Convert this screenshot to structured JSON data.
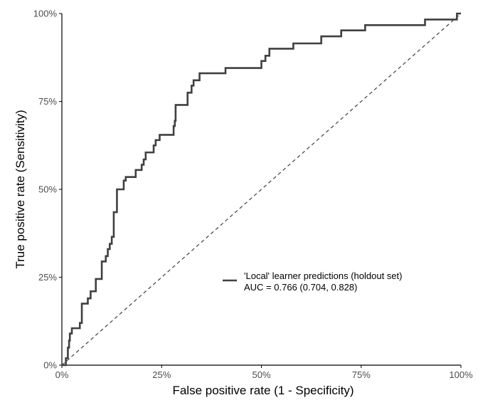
{
  "chart_data": {
    "type": "line",
    "title": "",
    "xlabel": "False positive rate (1 - Specificity)",
    "ylabel": "True positive rate (Sensitivity)",
    "xlim": [
      0,
      1
    ],
    "ylim": [
      0,
      1
    ],
    "x_ticks": [
      0,
      0.25,
      0.5,
      0.75,
      1
    ],
    "x_tick_labels": [
      "0%",
      "25%",
      "50%",
      "75%",
      "100%"
    ],
    "y_ticks": [
      0,
      0.25,
      0.5,
      0.75,
      1
    ],
    "y_tick_labels": [
      "0%",
      "25%",
      "50%",
      "75%",
      "100%"
    ],
    "grid": false,
    "legend_position": "bottom-right",
    "colors": {
      "curve": "#404040",
      "diagonal": "#404040",
      "axis": "#000000"
    },
    "reference_line": {
      "style": "dashed",
      "points": [
        [
          0,
          0
        ],
        [
          1,
          1
        ]
      ]
    },
    "series": [
      {
        "name": "'Local' learner predictions (holdout set)",
        "annotation": "AUC = 0.766 (0.704, 0.828)",
        "step": "vh",
        "points": [
          [
            0,
            0
          ],
          [
            0.01,
            0.02
          ],
          [
            0.015,
            0.05
          ],
          [
            0.018,
            0.07
          ],
          [
            0.02,
            0.09
          ],
          [
            0.025,
            0.105
          ],
          [
            0.045,
            0.12
          ],
          [
            0.05,
            0.175
          ],
          [
            0.065,
            0.19
          ],
          [
            0.072,
            0.21
          ],
          [
            0.085,
            0.245
          ],
          [
            0.1,
            0.295
          ],
          [
            0.11,
            0.31
          ],
          [
            0.115,
            0.33
          ],
          [
            0.12,
            0.345
          ],
          [
            0.125,
            0.365
          ],
          [
            0.13,
            0.435
          ],
          [
            0.138,
            0.5
          ],
          [
            0.155,
            0.525
          ],
          [
            0.16,
            0.535
          ],
          [
            0.185,
            0.555
          ],
          [
            0.2,
            0.57
          ],
          [
            0.205,
            0.585
          ],
          [
            0.21,
            0.605
          ],
          [
            0.23,
            0.625
          ],
          [
            0.235,
            0.64
          ],
          [
            0.245,
            0.655
          ],
          [
            0.28,
            0.68
          ],
          [
            0.283,
            0.695
          ],
          [
            0.285,
            0.74
          ],
          [
            0.315,
            0.775
          ],
          [
            0.325,
            0.795
          ],
          [
            0.33,
            0.81
          ],
          [
            0.345,
            0.83
          ],
          [
            0.41,
            0.845
          ],
          [
            0.5,
            0.865
          ],
          [
            0.51,
            0.88
          ],
          [
            0.52,
            0.9
          ],
          [
            0.58,
            0.915
          ],
          [
            0.65,
            0.935
          ],
          [
            0.7,
            0.952
          ],
          [
            0.76,
            0.967
          ],
          [
            0.91,
            0.983
          ],
          [
            0.99,
            1.0
          ],
          [
            1.0,
            1.0
          ]
        ]
      }
    ]
  }
}
